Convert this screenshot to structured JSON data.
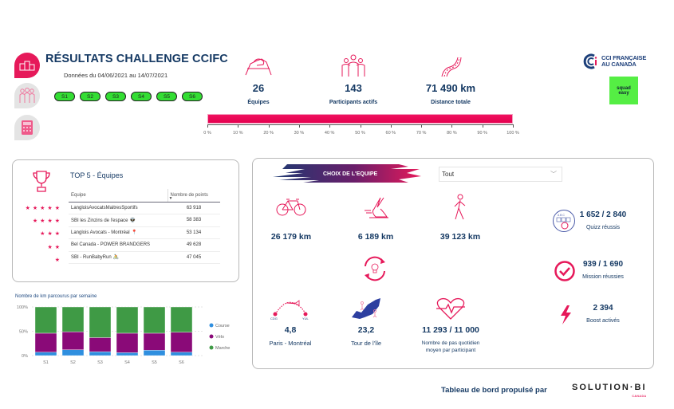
{
  "header": {
    "title": "RÉSULTATS CHALLENGE CCIFC",
    "subtitle": "Données du 04/06/2021 au 14/07/2021",
    "week_buttons": [
      "S1",
      "S2",
      "S3",
      "S4",
      "S5",
      "S6"
    ]
  },
  "nav": {
    "items": [
      {
        "icon": "podium-icon",
        "active": true
      },
      {
        "icon": "team-icon",
        "active": false
      },
      {
        "icon": "calculator-icon",
        "active": false
      }
    ]
  },
  "kpis": [
    {
      "icon": "handshake-icon",
      "value": "26",
      "label": "Équipes"
    },
    {
      "icon": "group-icon",
      "value": "143",
      "label": "Participants actifs"
    },
    {
      "icon": "road-icon",
      "value": "71 490 km",
      "label": "Distance totale"
    }
  ],
  "progress": {
    "value_percent": 100,
    "ticks": [
      "0 %",
      "10 %",
      "20 %",
      "30 %",
      "40 %",
      "50 %",
      "60 %",
      "70 %",
      "80 %",
      "90 %",
      "100 %"
    ]
  },
  "logos": {
    "cci_line1": "CCI FRANÇAISE",
    "cci_line2": "AU CANADA",
    "squad_line1": "squad",
    "squad_line2": "easy"
  },
  "top5": {
    "title": "TOP 5 - Équipes",
    "columns": [
      "Equipe",
      "Nombre de points"
    ],
    "rows": [
      {
        "stars": "★★★★★",
        "team": "LangloisAvocatsMaitresSportifs",
        "emoji": "",
        "points": "63 918"
      },
      {
        "stars": "★★★★",
        "team": "SBI les Zinzins de l'espace",
        "emoji": "👽",
        "points": "58 383"
      },
      {
        "stars": "★★★",
        "team": "Langlois Avocats - Montréal",
        "emoji": "📍",
        "points": "53 134"
      },
      {
        "stars": "★★",
        "team": "Bel Canada - POWER BRANDGERS",
        "emoji": "",
        "points": "49 628"
      },
      {
        "stars": "★",
        "team": "SBI - RunBabyRun",
        "emoji": "🚴",
        "points": "47 045"
      }
    ]
  },
  "chart_data": {
    "type": "bar",
    "stacked": "percent",
    "title": "Nombre de km parcourus par semaine",
    "categories": [
      "S1",
      "S2",
      "S3",
      "S4",
      "S5",
      "S6"
    ],
    "series": [
      {
        "name": "Course",
        "color": "#2f8fdf",
        "values": [
          7,
          12,
          8,
          6,
          11,
          7
        ]
      },
      {
        "name": "Vélo",
        "color": "#8a0a78",
        "values": [
          39,
          37,
          29,
          40,
          35,
          41
        ]
      },
      {
        "name": "Marche",
        "color": "#3f9a45",
        "values": [
          54,
          51,
          63,
          54,
          54,
          52
        ]
      }
    ],
    "yticks": [
      "0%",
      "50%",
      "100%"
    ],
    "ylim": [
      0,
      100
    ],
    "legend": "right",
    "grid": true
  },
  "team_panel": {
    "choice_label": "CHOIX DE L'EQUIPE",
    "dropdown_value": "Tout",
    "activities": [
      {
        "icon": "bicycle-icon",
        "value": "26 179 km"
      },
      {
        "icon": "running-shoe-icon",
        "value": "6 189 km"
      },
      {
        "icon": "walking-icon",
        "value": "39 123 km"
      }
    ],
    "equivalents": [
      {
        "icon": "flight-path-icon",
        "value": "4,8",
        "label": "Paris - Montréal",
        "from": "CDG",
        "to": "YUL"
      },
      {
        "icon": "island-map-icon",
        "value": "23,2",
        "label": "Tour de l'île"
      },
      {
        "icon": "heartbeat-icon",
        "value": "11 293 / 11 000",
        "label_line1": "Nombre de pas quotidien",
        "label_line2": "moyen par participant"
      }
    ],
    "stats": [
      {
        "icon": "quiz-icon",
        "value": "1 652 / 2 840",
        "label": "Quizz réussis"
      },
      {
        "icon": "check-circle-icon",
        "value": "939 / 1 690",
        "label": "Mission réussies"
      },
      {
        "icon": "lightning-icon",
        "value": "2 394",
        "label": "Boost activés"
      }
    ]
  },
  "footer": {
    "text": "Tableau de bord propulsé par",
    "brand": "SOLUTION·BI",
    "brand_sub": "CANADA"
  },
  "colors": {
    "accent": "#e6195a",
    "navy": "#163a64",
    "week_pill": "#33dd33"
  }
}
